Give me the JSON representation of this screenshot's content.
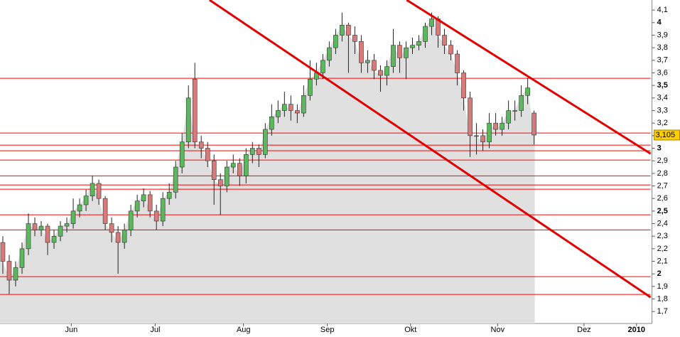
{
  "chart_data": {
    "type": "candlestick",
    "x": [
      0,
      1,
      2,
      3,
      4,
      5,
      6,
      7,
      8,
      9,
      10,
      11,
      12,
      13,
      14,
      15,
      16,
      17,
      18,
      19,
      20,
      21,
      22,
      23,
      24,
      25,
      26,
      27,
      28,
      29,
      30,
      31,
      32,
      33,
      34,
      35,
      36,
      37,
      38,
      39,
      40,
      41,
      42,
      43,
      44,
      45,
      46,
      47,
      48,
      49,
      50,
      51,
      52,
      53,
      54,
      55,
      56,
      57,
      58,
      59,
      60,
      61,
      62,
      63,
      64,
      65,
      66,
      67,
      68,
      69,
      70,
      71,
      72,
      73,
      74,
      75,
      76,
      77,
      78,
      79,
      80,
      81,
      82,
      83
    ],
    "open": [
      2.25,
      2.1,
      1.95,
      2.05,
      2.2,
      2.4,
      2.35,
      2.38,
      2.25,
      2.3,
      2.38,
      2.4,
      2.5,
      2.55,
      2.62,
      2.72,
      2.6,
      2.4,
      2.33,
      2.25,
      2.35,
      2.5,
      2.58,
      2.63,
      2.5,
      2.42,
      2.6,
      2.65,
      2.85,
      3.05,
      3.55,
      3.05,
      3.0,
      2.9,
      2.75,
      2.7,
      2.85,
      2.88,
      2.78,
      2.95,
      3.0,
      2.95,
      3.15,
      3.25,
      3.3,
      3.35,
      3.3,
      3.28,
      3.42,
      3.55,
      3.6,
      3.7,
      3.8,
      3.9,
      3.98,
      3.9,
      3.85,
      3.68,
      3.7,
      3.62,
      3.58,
      3.65,
      3.82,
      3.72,
      3.8,
      3.82,
      3.85,
      3.97,
      4.03,
      3.9,
      3.82,
      3.75,
      3.6,
      3.4,
      3.1,
      3.1,
      3.05,
      3.2,
      3.15,
      3.2,
      3.3,
      3.3,
      3.42,
      3.28
    ],
    "high": [
      2.3,
      2.15,
      2.1,
      2.25,
      2.48,
      2.45,
      2.42,
      2.4,
      2.35,
      2.42,
      2.45,
      2.6,
      2.6,
      2.67,
      2.78,
      2.75,
      2.62,
      2.45,
      2.38,
      2.4,
      2.55,
      2.63,
      2.68,
      2.66,
      2.55,
      2.65,
      2.72,
      2.9,
      3.12,
      3.5,
      3.68,
      3.1,
      3.05,
      2.95,
      2.8,
      2.9,
      2.95,
      2.92,
      3.0,
      3.05,
      3.03,
      3.2,
      3.35,
      3.38,
      3.45,
      3.42,
      3.35,
      3.5,
      3.7,
      3.68,
      3.75,
      3.85,
      3.95,
      4.08,
      4.0,
      3.97,
      3.9,
      3.78,
      3.75,
      3.66,
      3.7,
      3.95,
      3.85,
      3.85,
      3.88,
      3.9,
      4.0,
      4.08,
      4.05,
      3.95,
      3.86,
      3.78,
      3.62,
      3.45,
      3.2,
      3.15,
      3.28,
      3.28,
      3.25,
      3.38,
      3.38,
      3.5,
      3.56,
      3.3
    ],
    "low": [
      2.0,
      1.84,
      1.9,
      2.0,
      2.15,
      2.3,
      2.3,
      2.15,
      2.2,
      2.26,
      2.33,
      2.36,
      2.45,
      2.5,
      2.58,
      2.55,
      2.35,
      2.25,
      2.0,
      2.2,
      2.3,
      2.45,
      2.53,
      2.45,
      2.35,
      2.38,
      2.55,
      2.6,
      2.8,
      3.0,
      3.0,
      2.92,
      2.85,
      2.55,
      2.47,
      2.65,
      2.8,
      2.7,
      2.72,
      2.88,
      2.85,
      2.92,
      3.1,
      3.2,
      3.25,
      3.22,
      3.2,
      3.25,
      3.38,
      3.5,
      3.55,
      3.65,
      3.75,
      3.85,
      3.6,
      3.75,
      3.6,
      3.6,
      3.55,
      3.45,
      3.5,
      3.6,
      3.6,
      3.55,
      3.75,
      3.78,
      3.8,
      3.9,
      3.8,
      3.75,
      3.7,
      3.5,
      3.3,
      2.93,
      2.95,
      2.98,
      3.0,
      3.1,
      3.1,
      3.15,
      3.22,
      3.25,
      3.35,
      3.03
    ],
    "close": [
      2.1,
      1.95,
      2.05,
      2.2,
      2.4,
      2.35,
      2.38,
      2.25,
      2.3,
      2.38,
      2.4,
      2.5,
      2.55,
      2.62,
      2.72,
      2.6,
      2.4,
      2.33,
      2.25,
      2.35,
      2.5,
      2.58,
      2.63,
      2.5,
      2.42,
      2.6,
      2.65,
      2.85,
      3.05,
      3.4,
      3.05,
      3.0,
      2.9,
      2.75,
      2.7,
      2.85,
      2.88,
      2.78,
      2.95,
      3.0,
      2.95,
      3.15,
      3.25,
      3.3,
      3.35,
      3.3,
      3.28,
      3.42,
      3.55,
      3.6,
      3.7,
      3.8,
      3.9,
      3.98,
      3.9,
      3.85,
      3.68,
      3.7,
      3.62,
      3.58,
      3.65,
      3.82,
      3.72,
      3.8,
      3.82,
      3.85,
      3.97,
      4.03,
      3.9,
      3.82,
      3.75,
      3.6,
      3.4,
      3.1,
      3.1,
      3.05,
      3.2,
      3.15,
      3.2,
      3.3,
      3.3,
      3.42,
      3.48,
      3.105
    ],
    "up_color": "#5cb85c",
    "down_color": "#d77a7a",
    "area_color": "#e0e0e0",
    "xlim": [
      -0.44,
      101.2
    ],
    "ylim": [
      1.605,
      4.18
    ],
    "xticks": [
      {
        "value": 10.7,
        "label": "Jun"
      },
      {
        "value": 23.8,
        "label": "Jul"
      },
      {
        "value": 37.6,
        "label": "Aug"
      },
      {
        "value": 50.7,
        "label": "Sep"
      },
      {
        "value": 63.7,
        "label": "Okt"
      },
      {
        "value": 77.3,
        "label": "Nov"
      },
      {
        "value": 90.8,
        "label": "Dez"
      },
      {
        "value": 99,
        "label": "2010"
      }
    ],
    "yticks": [
      {
        "value": 1.7,
        "label": "1,7"
      },
      {
        "value": 1.8,
        "label": "1,8"
      },
      {
        "value": 1.9,
        "label": "1,9"
      },
      2,
      {
        "value": 2.1,
        "label": "2,1"
      },
      {
        "value": 2.2,
        "label": "2,2"
      },
      {
        "value": 2.3,
        "label": "2,3"
      },
      {
        "value": 2.4,
        "label": "2,4"
      },
      {
        "value": 2.5,
        "label": "2,5"
      },
      {
        "value": 2.6,
        "label": "2,6"
      },
      {
        "value": 2.7,
        "label": "2,7"
      },
      {
        "value": 2.8,
        "label": "2,8"
      },
      {
        "value": 2.9,
        "label": "2,9"
      },
      3,
      {
        "value": 3.1,
        "label": "3,1"
      },
      {
        "value": 3.2,
        "label": "3,2"
      },
      {
        "value": 3.3,
        "label": "3,3"
      },
      {
        "value": 3.4,
        "label": "3,4"
      },
      {
        "value": 3.5,
        "label": "3,5"
      },
      {
        "value": 3.6,
        "label": "3,6"
      },
      {
        "value": 3.7,
        "label": "3,7"
      },
      {
        "value": 3.8,
        "label": "3,8"
      },
      {
        "value": 3.9,
        "label": "3,9"
      },
      4,
      {
        "value": 4.1,
        "label": "4,1"
      }
    ],
    "hlines": [
      3.557,
      3.121,
      3.025,
      2.98,
      2.906,
      2.78,
      2.708,
      2.674,
      2.47,
      2.35,
      1.978,
      1.836
    ],
    "hline_color": "#ff0000",
    "trendlines": [
      {
        "x": [
          32.3,
          101.2
        ],
        "y": [
          4.18,
          1.814
        ]
      },
      {
        "x": [
          63.1,
          101.2
        ],
        "y": [
          4.18,
          2.957
        ]
      }
    ],
    "trend_color": "#e00000",
    "last": {
      "value": 3.105,
      "label": "3,105"
    },
    "last_color": "#ffcc00"
  }
}
